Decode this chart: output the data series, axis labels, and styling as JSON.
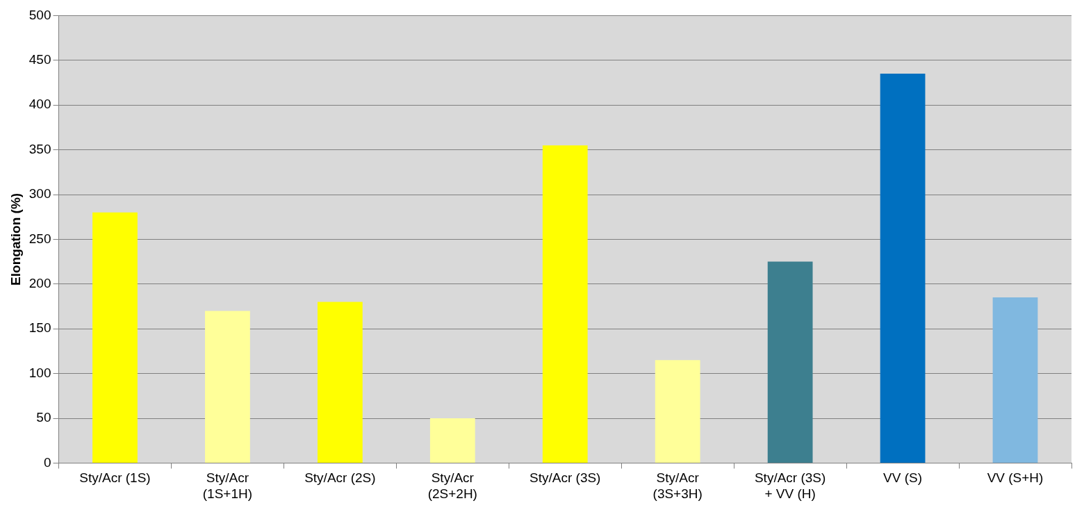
{
  "chart_data": {
    "type": "bar",
    "ylabel": "Elongation (%)",
    "categories": [
      "Sty/Acr (1S)",
      "Sty/Acr (1S+1H)",
      "Sty/Acr (2S)",
      "Sty/Acr (2S+2H)",
      "Sty/Acr (3S)",
      "Sty/Acr (3S+3H)",
      "Sty/Acr (3S) + VV (H)",
      "VV (S)",
      "VV (S+H)"
    ],
    "values": [
      280,
      170,
      180,
      50,
      355,
      115,
      225,
      435,
      185
    ],
    "colors": [
      "#ffff00",
      "#ffff99",
      "#ffff00",
      "#ffff99",
      "#ffff00",
      "#ffff99",
      "#3d7f8f",
      "#0070c0",
      "#80b8e0"
    ],
    "ylim": [
      0,
      500
    ],
    "yticks": [
      0,
      50,
      100,
      150,
      200,
      250,
      300,
      350,
      400,
      450,
      500
    ],
    "grid": "y"
  }
}
